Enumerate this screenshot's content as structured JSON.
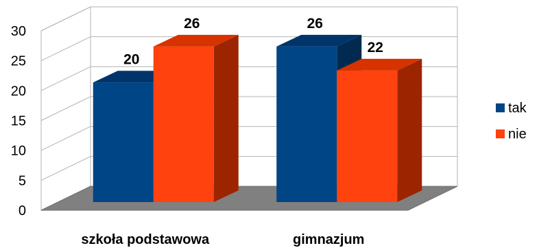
{
  "chart_data": {
    "type": "bar",
    "categories": [
      "szkoła podstawowa",
      "gimnazjum"
    ],
    "series": [
      {
        "name": "tak",
        "values": [
          20,
          26
        ],
        "color": "#004586",
        "side_color": "#002a50",
        "top_color": "#00346a"
      },
      {
        "name": "nie",
        "values": [
          26,
          22
        ],
        "color": "#ff420e",
        "side_color": "#9c2500",
        "top_color": "#d63300"
      }
    ],
    "yticks": [
      0,
      5,
      10,
      15,
      20,
      25,
      30
    ],
    "ylim": [
      0,
      30
    ],
    "grid": true,
    "three_d": true,
    "legend_position": "right",
    "title": "",
    "xlabel": "",
    "ylabel": ""
  }
}
